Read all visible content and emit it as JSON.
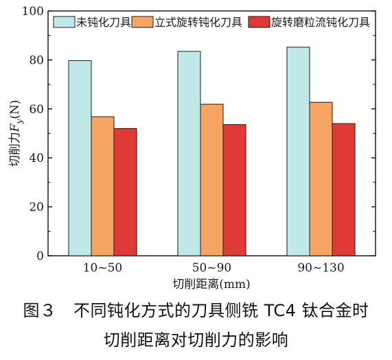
{
  "chart_data": {
    "type": "bar",
    "categories": [
      "10~50",
      "50~90",
      "90~130"
    ],
    "series": [
      {
        "name": "未钝化刀具",
        "color": "#bfe8e6",
        "values": [
          79.7,
          83.5,
          85.2
        ]
      },
      {
        "name": "立式旋转钝化刀具",
        "color": "#f6a461",
        "values": [
          56.8,
          61.9,
          62.7
        ]
      },
      {
        "name": "旋转磨粒流钝化刀具",
        "color": "#e03a36",
        "values": [
          52.0,
          53.6,
          54.0
        ]
      }
    ],
    "xlabel": "切削距离(mm)",
    "ylabel": "切削力F_y(N)",
    "ylabel_prefix": "切削力",
    "ylabel_symbol": "F",
    "ylabel_subscript": "y",
    "ylabel_unit": "(N)",
    "ylim": [
      0,
      100
    ],
    "yticks": [
      "0",
      "20",
      "40",
      "60",
      "80",
      "100"
    ],
    "grid": false,
    "legend_position": "top"
  },
  "caption": {
    "line1": "图３　不同钝化方式的刀具侧铣 TC4 钛合金时",
    "line2": "切削距离对切削力的影响"
  }
}
